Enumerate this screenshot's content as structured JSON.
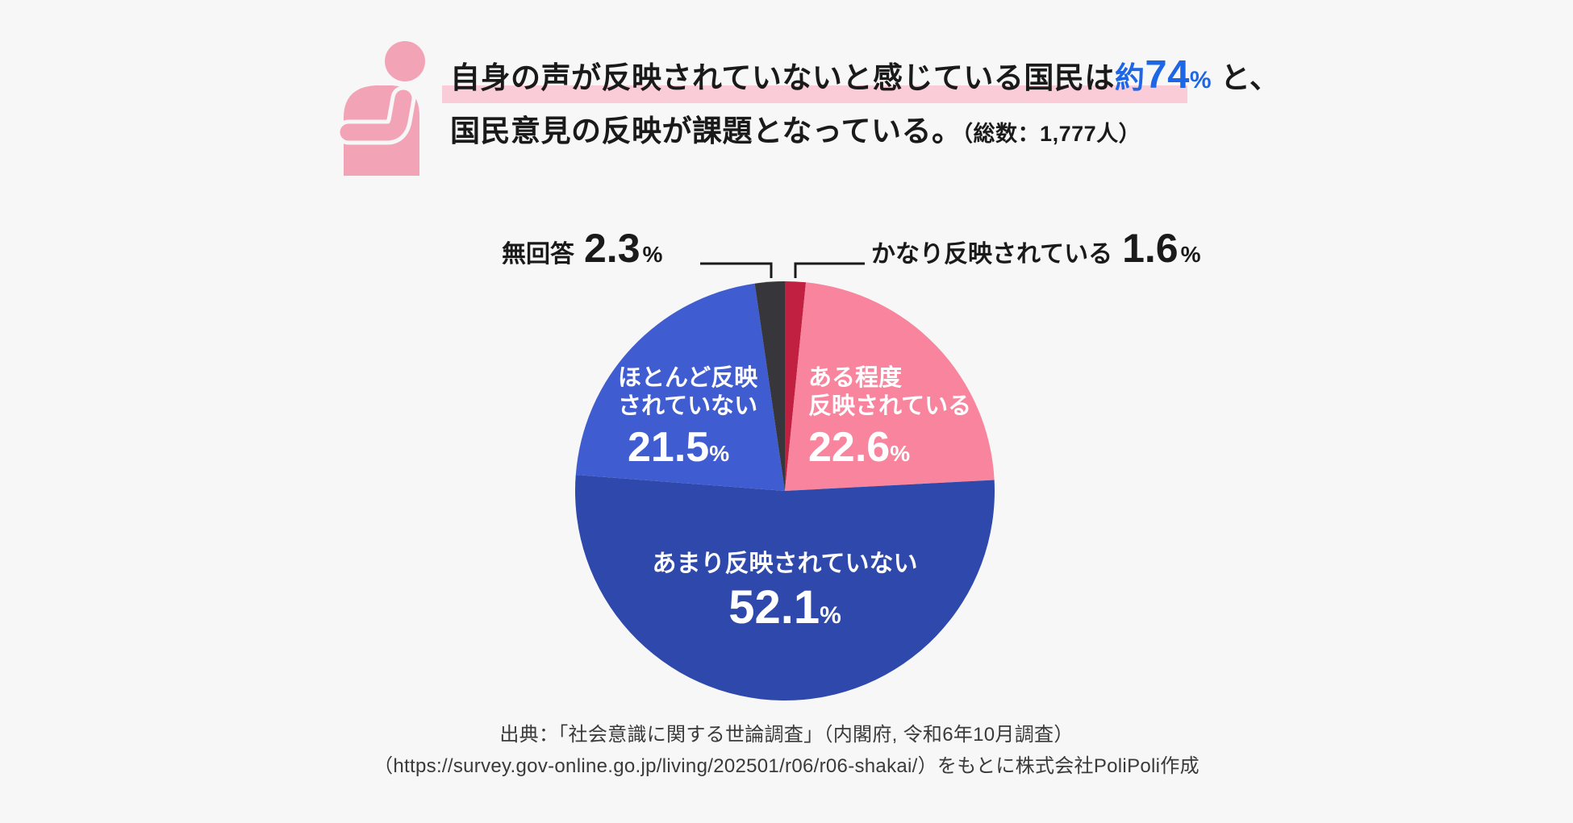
{
  "ui": {
    "background": "#f7f7f7",
    "text_color": "#1a1a1a",
    "percent_sign": "%",
    "leader_line_color": "#1a1a1a",
    "person_icon_color": "#f3a3b6"
  },
  "header": {
    "line1_prefix": "自身の声が反映されていないと感じている国民は",
    "approx": "約",
    "big_number": "74",
    "line1_suffix": " と、",
    "line2": "国民意見の反映が課題となっている。",
    "line2_note": "（総数：1,777人）",
    "accent_color": "#1d66e5",
    "highlight_color": "#f9ccd8"
  },
  "chart_data": {
    "type": "pie",
    "title": "",
    "start_angle_deg": 0,
    "direction": "clockwise",
    "value_suffix": "%",
    "legend_position": "labels-on-slices",
    "slices": [
      {
        "key": "fairly-reflected",
        "label": "かなり反映されている",
        "value": 1.6,
        "color": "#c22040"
      },
      {
        "key": "somewhat-reflected",
        "label": "ある程度反映されている",
        "value": 22.6,
        "color": "#f8859d"
      },
      {
        "key": "not-much-reflected",
        "label": "あまり反映されていない",
        "value": 52.1,
        "color": "#2e48ab"
      },
      {
        "key": "hardly-reflected",
        "label": "ほとんど反映されていない",
        "value": 21.5,
        "color": "#3f5cd1"
      },
      {
        "key": "no-answer",
        "label": "無回答",
        "value": 2.3,
        "color": "#37363a"
      }
    ]
  },
  "pie_labels": {
    "hotondo": {
      "line1": "ほとんど反映",
      "line2": "されていない"
    },
    "aruteido": {
      "line1": "ある程度",
      "line2": "反映されている"
    },
    "amari": {
      "line1": "あまり反映されていない"
    }
  },
  "source": {
    "line1": "出典：「社会意識に関する世論調査」（内閣府, 令和6年10月調査）",
    "line2": "（https://survey.gov-online.go.jp/living/202501/r06/r06-shakai/）をもとに株式会社PoliPoli作成"
  }
}
